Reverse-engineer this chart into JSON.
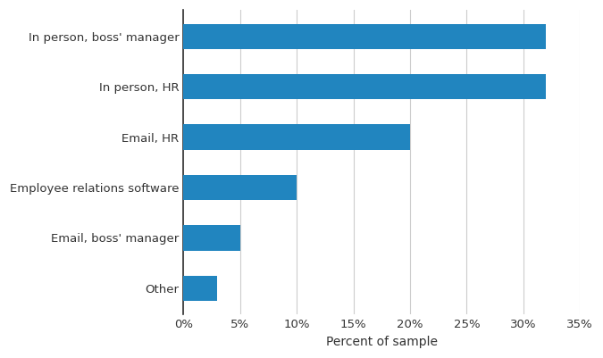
{
  "categories": [
    "Other",
    "Email, boss' manager",
    "Employee relations software",
    "Email, HR",
    "In person, HR",
    "In person, boss' manager"
  ],
  "values": [
    3,
    5,
    10,
    20,
    32,
    32
  ],
  "bar_color": "#2185bf",
  "xlabel": "Percent of sample",
  "xlim": [
    0,
    35
  ],
  "xticks": [
    0,
    5,
    10,
    15,
    20,
    25,
    30,
    35
  ],
  "xtick_labels": [
    "0%",
    "5%",
    "10%",
    "15%",
    "20%",
    "25%",
    "30%",
    "35%"
  ],
  "grid_color": "#cccccc",
  "background_color": "#ffffff",
  "bar_height": 0.5
}
